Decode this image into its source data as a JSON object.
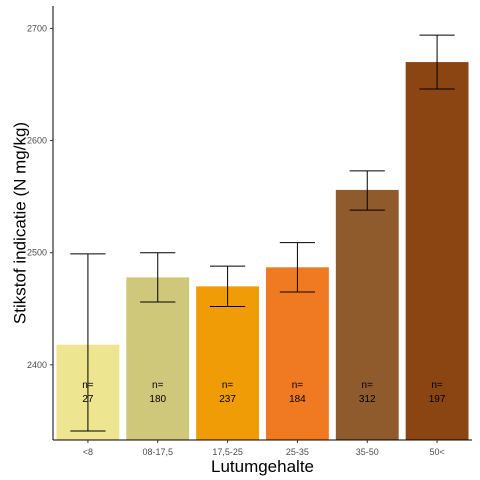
{
  "chart_data": {
    "type": "bar",
    "title": "",
    "xlabel": "Lutumgehalte",
    "ylabel": "Stikstof indicatie (N mg/kg)",
    "categories": [
      "<8",
      "08-17,5",
      "17,5-25",
      "25-35",
      "35-50",
      "50<"
    ],
    "values": [
      2418,
      2478,
      2470,
      2487,
      2556,
      2670
    ],
    "error_low": [
      2341,
      2456,
      2452,
      2465,
      2538,
      2646
    ],
    "error_high": [
      2499,
      2500,
      2488,
      2509,
      2573,
      2694
    ],
    "n_prefix": "n=",
    "n_values": [
      "27",
      "180",
      "237",
      "184",
      "312",
      "197"
    ],
    "colors": [
      "#ede58f",
      "#cfc77a",
      "#ef9c06",
      "#ef7a22",
      "#8f5a2c",
      "#8b4513"
    ],
    "ylim": [
      2333,
      2720
    ],
    "yticks": [
      2400,
      2500,
      2600,
      2700
    ],
    "grid": false,
    "legend": "none"
  }
}
